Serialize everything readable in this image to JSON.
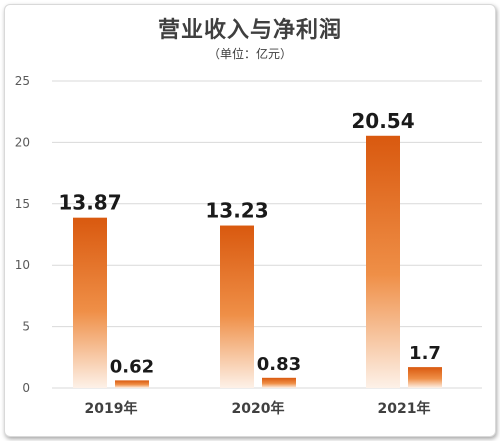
{
  "title": "营业收入与净利润",
  "subtitle": "（单位：亿元）",
  "colors": {
    "bar_top": "#d9590f",
    "bar_mid": "#ef8f47",
    "bar_bottom": "#fdf1e8",
    "grid": "#d9d9d9",
    "text": "#404040"
  },
  "chart_data": {
    "type": "bar",
    "title": "营业收入与净利润",
    "subtitle": "（单位：亿元）",
    "categories": [
      "2019年",
      "2020年",
      "2021年"
    ],
    "series": [
      {
        "values": [
          13.87,
          13.23,
          20.54
        ],
        "labels": [
          "13.87",
          "13.23",
          "20.54"
        ]
      },
      {
        "values": [
          0.62,
          0.83,
          1.7
        ],
        "labels": [
          "0.62",
          "0.83",
          "1.7"
        ]
      }
    ],
    "ylim": [
      0,
      25
    ],
    "yticks": [
      "0",
      "5",
      "10",
      "15",
      "20",
      "25"
    ],
    "grid": true,
    "legend": "none"
  }
}
